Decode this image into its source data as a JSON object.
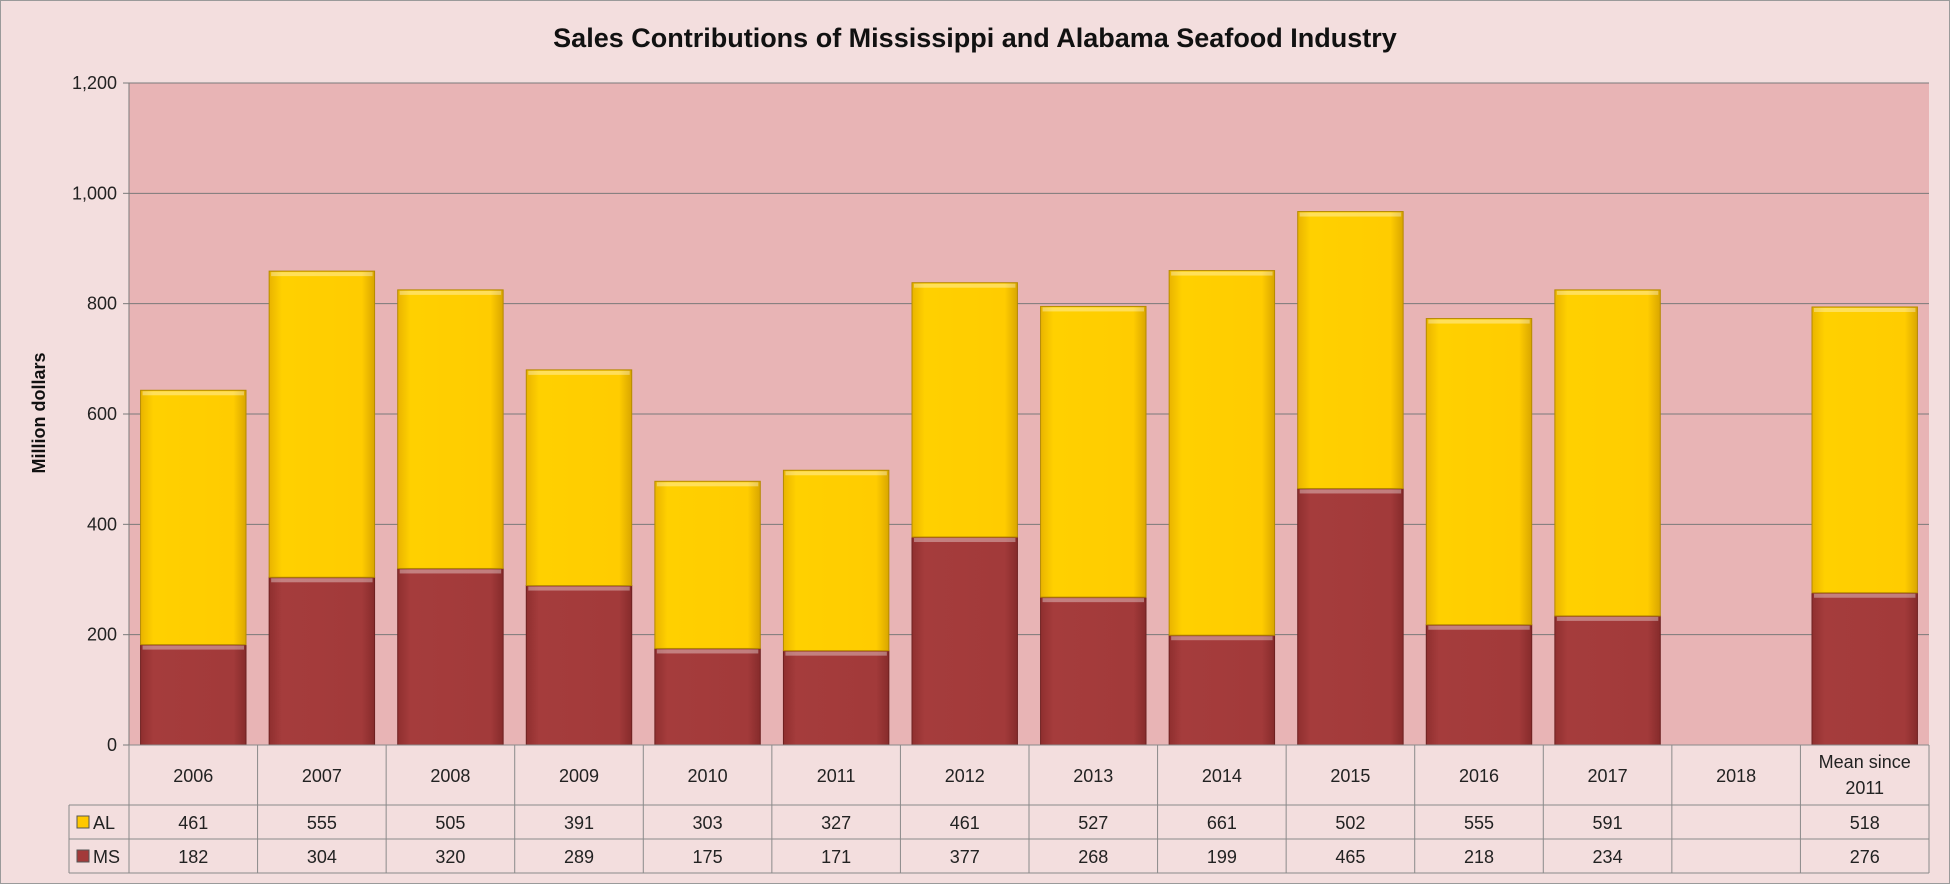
{
  "chart_data": {
    "type": "bar",
    "stacked": true,
    "title": "Sales Contributions of Mississippi and Alabama Seafood Industry",
    "ylabel": "Million dollars",
    "ylim": [
      0,
      1200
    ],
    "yticks": [
      0,
      200,
      400,
      600,
      800,
      1000,
      1200
    ],
    "ytick_labels": [
      "0",
      "200",
      "400",
      "600",
      "800",
      "1,000",
      "1,200"
    ],
    "grid": true,
    "legend_placement": "data-table",
    "categories": [
      "2006",
      "2007",
      "2008",
      "2009",
      "2010",
      "2011",
      "2012",
      "2013",
      "2014",
      "2015",
      "2016",
      "2017",
      "2018",
      "Mean since 2011"
    ],
    "series": [
      {
        "name": "MS",
        "color": "#a23a3a",
        "values": [
          182,
          304,
          320,
          289,
          175,
          171,
          377,
          268,
          199,
          465,
          218,
          234,
          null,
          276
        ]
      },
      {
        "name": "AL",
        "color": "#ffc800",
        "values": [
          461,
          555,
          505,
          391,
          303,
          327,
          461,
          527,
          661,
          502,
          555,
          591,
          null,
          518
        ]
      }
    ],
    "table_rows": [
      {
        "label": "AL",
        "color": "#ffc800",
        "cells": [
          "461",
          "555",
          "505",
          "391",
          "303",
          "327",
          "461",
          "527",
          "661",
          "502",
          "555",
          "591",
          "",
          "518"
        ]
      },
      {
        "label": "MS",
        "color": "#a23a3a",
        "cells": [
          "182",
          "304",
          "320",
          "289",
          "175",
          "171",
          "377",
          "268",
          "199",
          "465",
          "218",
          "234",
          "",
          "276"
        ]
      }
    ]
  },
  "colors": {
    "page_background": "#f3dede",
    "plot_background": "#e8b4b5",
    "gridline": "#7a7a7a",
    "table_border": "#8a8a8a"
  }
}
